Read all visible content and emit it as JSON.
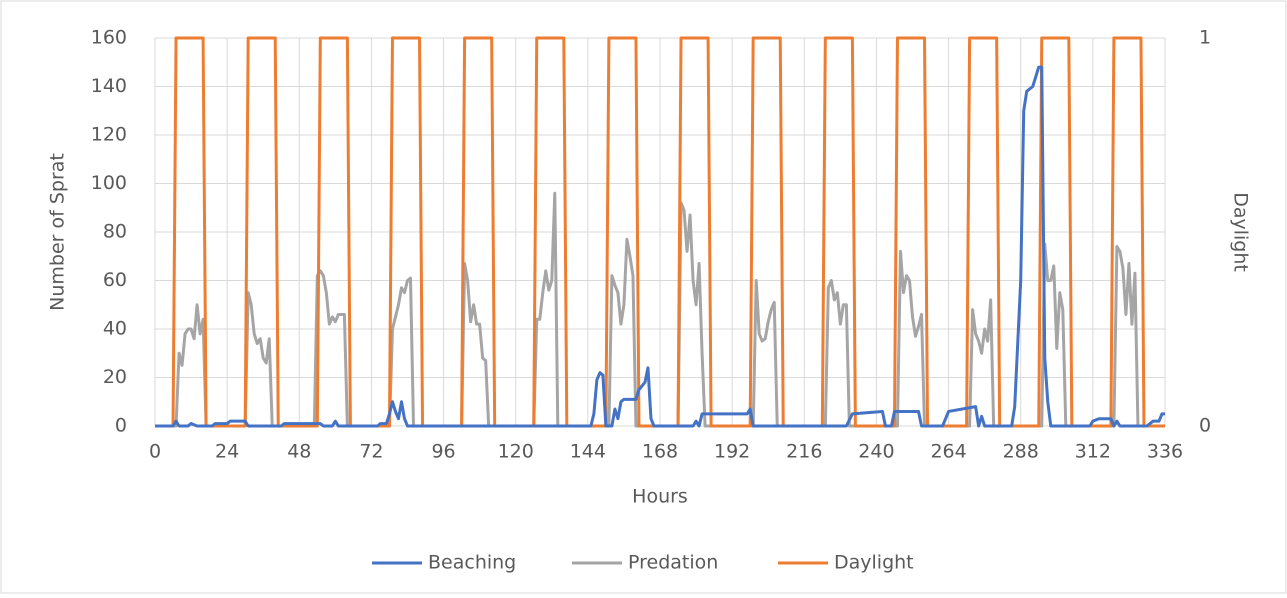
{
  "chart_data": {
    "type": "line",
    "x_label": "Hours",
    "y_label": "Number of  Sprat",
    "y2_label": "Daylight",
    "xlim": [
      0,
      336
    ],
    "xticks": [
      0,
      24,
      48,
      72,
      96,
      120,
      144,
      168,
      192,
      216,
      240,
      264,
      288,
      312,
      336
    ],
    "ylim": [
      0,
      160
    ],
    "yticks": [
      0,
      20,
      40,
      60,
      80,
      100,
      120,
      140,
      160
    ],
    "y2lim": [
      0,
      1
    ],
    "y2ticks": [
      0,
      1
    ],
    "grid": true,
    "legend": "bottom",
    "series": [
      {
        "name": "Beaching",
        "color": "#4472c4",
        "x": [
          0,
          6,
          7,
          8,
          11,
          12,
          14,
          19,
          20,
          24,
          25,
          30,
          31,
          42,
          43,
          55,
          56,
          59,
          60,
          61,
          74,
          75,
          77,
          78,
          79,
          80,
          81,
          82,
          83,
          84,
          145,
          146,
          147,
          148,
          149,
          150,
          152,
          153,
          154,
          155,
          156,
          160,
          161,
          163,
          164,
          165,
          166,
          179,
          180,
          181,
          182,
          197,
          198,
          199,
          230,
          232,
          242,
          243,
          245,
          246,
          254,
          255,
          262,
          264,
          273,
          274,
          275,
          276,
          285,
          286,
          288,
          289,
          290,
          292,
          293,
          294,
          295,
          296,
          297,
          298,
          311,
          312,
          314,
          318,
          319,
          320,
          321,
          330,
          332,
          334,
          335,
          336
        ],
        "values": [
          0,
          0,
          2,
          0,
          0,
          1,
          0,
          0,
          1,
          1,
          2,
          2,
          0,
          0,
          1,
          1,
          0,
          0,
          2,
          0,
          0,
          1,
          1,
          5,
          10,
          6,
          3,
          10,
          3,
          0,
          0,
          5,
          19,
          22,
          21,
          0,
          0,
          7,
          3,
          10,
          11,
          11,
          15,
          18,
          24,
          3,
          0,
          0,
          2,
          0,
          5,
          5,
          7,
          0,
          0,
          5,
          6,
          0,
          0,
          6,
          6,
          0,
          0,
          6,
          8,
          0,
          4,
          0,
          0,
          8,
          60,
          130,
          138,
          140,
          144,
          148,
          148,
          28,
          10,
          0,
          0,
          2,
          3,
          3,
          0,
          2,
          0,
          0,
          2,
          2,
          5,
          5
        ]
      },
      {
        "name": "Predation",
        "color": "#a5a5a5",
        "x": [
          0,
          7,
          8,
          9,
          10,
          11,
          12,
          13,
          14,
          15,
          16,
          17,
          30,
          31,
          32,
          33,
          34,
          35,
          36,
          37,
          38,
          39,
          53,
          54,
          55,
          56,
          57,
          58,
          59,
          60,
          61,
          63,
          64,
          78,
          79,
          80,
          81,
          82,
          83,
          84,
          85,
          86,
          102,
          103,
          104,
          105,
          106,
          107,
          108,
          109,
          110,
          111,
          126,
          127,
          128,
          129,
          130,
          131,
          132,
          133,
          134,
          151,
          152,
          153,
          154,
          155,
          156,
          157,
          158,
          159,
          160,
          174,
          175,
          176,
          177,
          178,
          179,
          180,
          181,
          182,
          183,
          199,
          200,
          201,
          202,
          203,
          204,
          205,
          206,
          207,
          223,
          224,
          225,
          226,
          227,
          228,
          229,
          230,
          231,
          247,
          248,
          249,
          250,
          251,
          252,
          253,
          254,
          255,
          256,
          271,
          272,
          273,
          274,
          275,
          276,
          277,
          278,
          279,
          295,
          296,
          297,
          298,
          299,
          300,
          301,
          302,
          303,
          319,
          320,
          321,
          322,
          323,
          324,
          325,
          326,
          327,
          336
        ],
        "values": [
          0,
          0,
          30,
          25,
          38,
          40,
          40,
          36,
          50,
          38,
          44,
          0,
          0,
          55,
          50,
          38,
          34,
          36,
          28,
          26,
          36,
          0,
          0,
          62,
          64,
          62,
          55,
          42,
          45,
          43,
          46,
          46,
          0,
          0,
          40,
          45,
          50,
          57,
          55,
          60,
          61,
          0,
          0,
          67,
          60,
          43,
          50,
          42,
          42,
          28,
          27,
          0,
          0,
          44,
          44,
          55,
          64,
          56,
          60,
          96,
          0,
          0,
          62,
          58,
          55,
          42,
          50,
          77,
          70,
          62,
          0,
          0,
          92,
          89,
          72,
          87,
          60,
          50,
          67,
          30,
          0,
          0,
          60,
          38,
          35,
          36,
          43,
          48,
          51,
          0,
          0,
          57,
          60,
          52,
          55,
          42,
          50,
          50,
          0,
          0,
          72,
          55,
          62,
          60,
          45,
          37,
          41,
          46,
          0,
          0,
          48,
          38,
          35,
          30,
          40,
          35,
          52,
          0,
          0,
          75,
          60,
          60,
          66,
          32,
          55,
          48,
          0,
          0,
          74,
          72,
          65,
          46,
          67,
          42,
          63,
          0,
          0
        ]
      },
      {
        "name": "Daylight",
        "color": "#ed7d31",
        "axis": "y2",
        "x": [
          0,
          6,
          7,
          16,
          17,
          30,
          31,
          40,
          41,
          54,
          55,
          64,
          65,
          78,
          79,
          88,
          89,
          102,
          103,
          112,
          113,
          126,
          127,
          136,
          137,
          150,
          151,
          160,
          161,
          174,
          175,
          184,
          185,
          198,
          199,
          208,
          209,
          222,
          223,
          232,
          233,
          246,
          247,
          256,
          257,
          270,
          271,
          280,
          281,
          294,
          295,
          304,
          305,
          318,
          319,
          328,
          329,
          336
        ],
        "values": [
          0,
          0,
          1,
          1,
          0,
          0,
          1,
          1,
          0,
          0,
          1,
          1,
          0,
          0,
          1,
          1,
          0,
          0,
          1,
          1,
          0,
          0,
          1,
          1,
          0,
          0,
          1,
          1,
          0,
          0,
          1,
          1,
          0,
          0,
          1,
          1,
          0,
          0,
          1,
          1,
          0,
          0,
          1,
          1,
          0,
          0,
          1,
          1,
          0,
          0,
          1,
          1,
          0,
          0,
          1,
          1,
          0,
          0
        ]
      }
    ]
  }
}
